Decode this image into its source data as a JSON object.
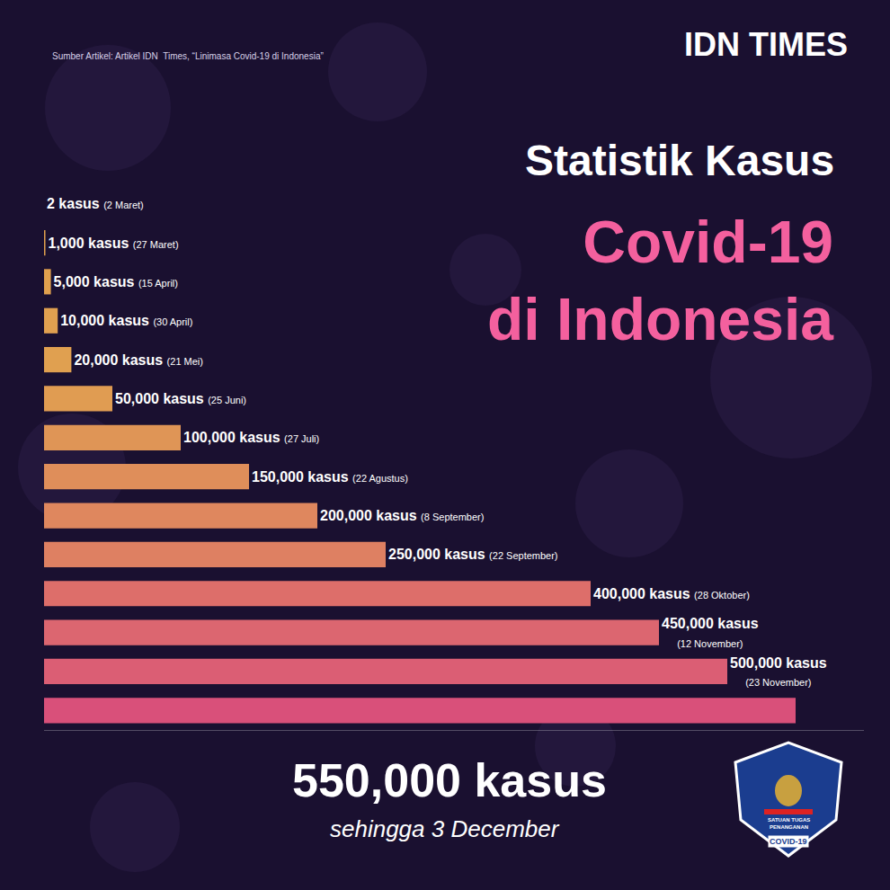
{
  "chart_data": {
    "type": "bar",
    "orientation": "horizontal",
    "title": "Statistik Kasus",
    "subtitle": "Covid-19\ndi Indonesia",
    "categories": [
      "(2 Maret)",
      "(27 Maret)",
      "(15 April)",
      "(30 April)",
      "(21 Mei)",
      "(25 Juni)",
      "(27 Juli)",
      "(22 Agustus)",
      "(8 September)",
      "(22 September)",
      "(28 Oktober)",
      "(12 November)",
      "(23 November)",
      "sehingga 3 December"
    ],
    "values": [
      2,
      1000,
      5000,
      10000,
      20000,
      50000,
      100000,
      150000,
      200000,
      250000,
      400000,
      450000,
      500000,
      550000
    ],
    "value_labels": [
      "2 kasus",
      "1,000 kasus",
      "5,000 kasus",
      "10,000 kasus",
      "20,000 kasus",
      "50,000 kasus",
      "100,000 kasus",
      "150,000 kasus",
      "200,000 kasus",
      "250,000 kasus",
      "400,000 kasus",
      "450,000 kasus",
      "500,000 kasus",
      "550,000 kasus"
    ],
    "data_labels": true,
    "colors": [
      "#e0a04e",
      "#e0a04e",
      "#e0a04e",
      "#e0a050",
      "#e0a050",
      "#e09c52",
      "#df9556",
      "#df8e5a",
      "#df875e",
      "#de8062",
      "#dd6e6a",
      "#dc6670",
      "#db5e74",
      "#d9507a"
    ],
    "xlim": [
      0,
      600000
    ],
    "tick_labels": false,
    "grid": false,
    "annotations": [
      "Sumber Artikel: Artikel IDN  Times, “Linimasa Covid-19 di Indonesia”",
      "IDN TIMES",
      "SATUAN TUGAS\nPENANGANAN",
      "COVID-19"
    ]
  }
}
